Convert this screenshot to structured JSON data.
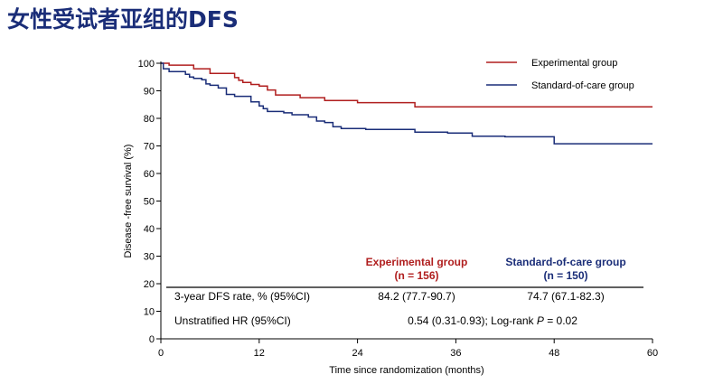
{
  "title": "女性受试者亚组的DFS",
  "colors": {
    "experimental": "#b01e1e",
    "standard": "#1a2d78",
    "title": "#1a2d78"
  },
  "chart_data": {
    "type": "line",
    "step": true,
    "title": "女性受试者亚组的DFS",
    "xlabel": "Time since randomization (months)",
    "ylabel": "Disease -free survival (%)",
    "xlim": [
      0,
      60
    ],
    "ylim": [
      0,
      100
    ],
    "xticks": [
      "0",
      "12",
      "24",
      "36",
      "48",
      "60"
    ],
    "yticks": [
      "0",
      "10",
      "20",
      "30",
      "40",
      "50",
      "60",
      "70",
      "80",
      "90",
      "100"
    ],
    "grid": false,
    "legend_position": "top-right",
    "series": [
      {
        "name": "Experimental group",
        "color": "#b01e1e",
        "x": [
          0,
          1,
          4,
          6,
          9,
          9.5,
          10,
          11,
          12,
          13,
          14,
          17,
          20,
          24,
          31,
          60
        ],
        "y": [
          100,
          99.3,
          98,
          96.3,
          94.8,
          93.8,
          93,
          92.3,
          91.7,
          90.3,
          88.5,
          87.5,
          86.5,
          85.7,
          84.2,
          84.2
        ]
      },
      {
        "name": "Standard-of-care group",
        "color": "#1a2d78",
        "x": [
          0,
          0.3,
          1,
          3,
          3.5,
          4,
          5,
          5.5,
          6,
          7,
          8,
          9,
          11,
          12,
          12.5,
          13,
          15,
          16,
          18,
          19,
          20,
          21,
          22,
          25,
          28,
          31,
          35,
          38,
          40,
          42,
          48,
          60
        ],
        "y": [
          100,
          98,
          97,
          96,
          95,
          94.5,
          94,
          92.5,
          92,
          91,
          88.7,
          88,
          86,
          84.5,
          83.5,
          82.5,
          82,
          81.3,
          80.5,
          79,
          78.5,
          77,
          76.3,
          76,
          76,
          75,
          74.7,
          73.5,
          73.5,
          73.3,
          70.8,
          70.8
        ]
      }
    ],
    "table": {
      "headers": [
        "Experimental group",
        "(n = 156)",
        "Standard-of-care group",
        "(n = 150)"
      ],
      "rows": [
        {
          "label": "3-year DFS rate, % (95%CI)",
          "experimental": "84.2 (77.7-90.7)",
          "standard": "74.7 (67.1-82.3)"
        },
        {
          "label": "Unstratified HR (95%CI)",
          "combined": "0.54 (0.31-0.93); Log-rank P = 0.02"
        }
      ]
    }
  }
}
